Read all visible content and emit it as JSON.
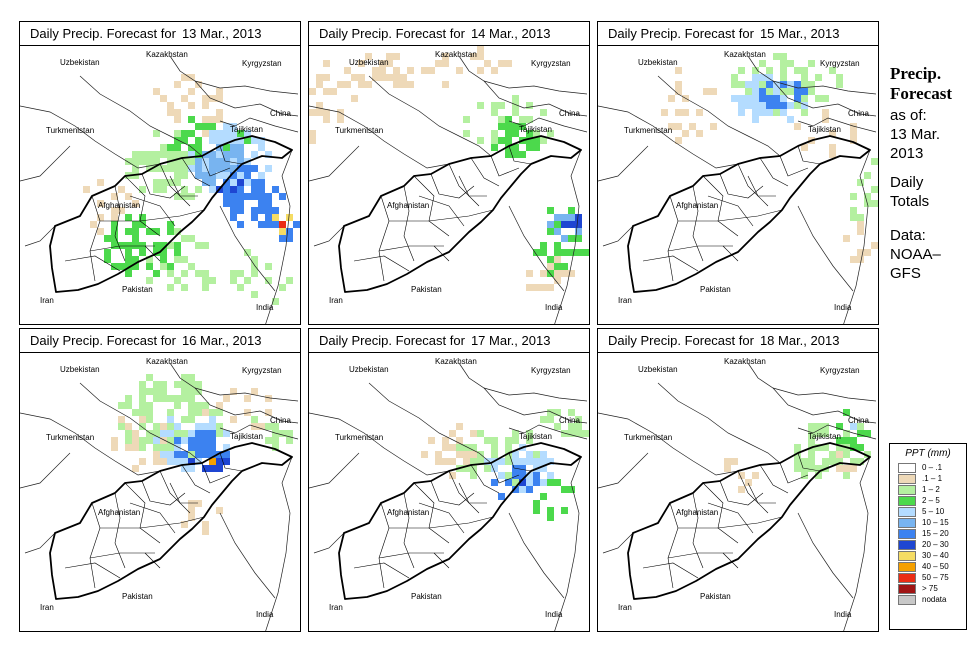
{
  "panels": [
    {
      "title_prefix": "Daily Precip. Forecast for",
      "date": "13 Mar., 2013"
    },
    {
      "title_prefix": "Daily Precip. Forecast for",
      "date": "14 Mar., 2013"
    },
    {
      "title_prefix": "Daily Precip. Forecast for",
      "date": "15 Mar., 2013"
    },
    {
      "title_prefix": "Daily Precip. Forecast for",
      "date": "16 Mar., 2013"
    },
    {
      "title_prefix": "Daily Precip. Forecast for",
      "date": "17 Mar., 2013"
    },
    {
      "title_prefix": "Daily Precip. Forecast for",
      "date": "18 Mar., 2013"
    }
  ],
  "map_labels": {
    "uzbekistan": "Uzbekistan",
    "kazakhstan": "Kazakhstan",
    "kyrgyzstan": "Kyrgyzstan",
    "turkmenistan": "Turkmenistan",
    "tajikistan": "Tajikistan",
    "china": "China",
    "afghanistan": "Afghanistan",
    "pakistan": "Pakistan",
    "iran": "Iran",
    "india": "India"
  },
  "side_info": {
    "title_line1": "Precip.",
    "title_line2": "Forecast",
    "asof_line1": "as of:",
    "asof_line2": "13 Mar.",
    "asof_line3": "2013",
    "totals_line1": "Daily",
    "totals_line2": "Totals",
    "data_line1": "Data:",
    "data_line2": "NOAA–",
    "data_line3": "GFS"
  },
  "legend": {
    "title": "PPT (mm)",
    "items": [
      {
        "label": "0 – .1",
        "color": "#ffffff"
      },
      {
        "label": ".1 – 1",
        "color": "#eed9b8"
      },
      {
        "label": "1 – 2",
        "color": "#b4f0a0"
      },
      {
        "label": "2 – 5",
        "color": "#4cd94c"
      },
      {
        "label": "5 – 10",
        "color": "#b4dcff"
      },
      {
        "label": "10 – 15",
        "color": "#78b4f0"
      },
      {
        "label": "15 – 20",
        "color": "#3c82f0"
      },
      {
        "label": "20 – 30",
        "color": "#1e46d2"
      },
      {
        "label": "30 – 40",
        "color": "#f5dc64"
      },
      {
        "label": "40 – 50",
        "color": "#f5a000"
      },
      {
        "label": "50 – 75",
        "color": "#eb2d14"
      },
      {
        "label": "> 75",
        "color": "#a01414"
      },
      {
        "label": "nodata",
        "color": "#c8c8c8"
      }
    ]
  }
}
